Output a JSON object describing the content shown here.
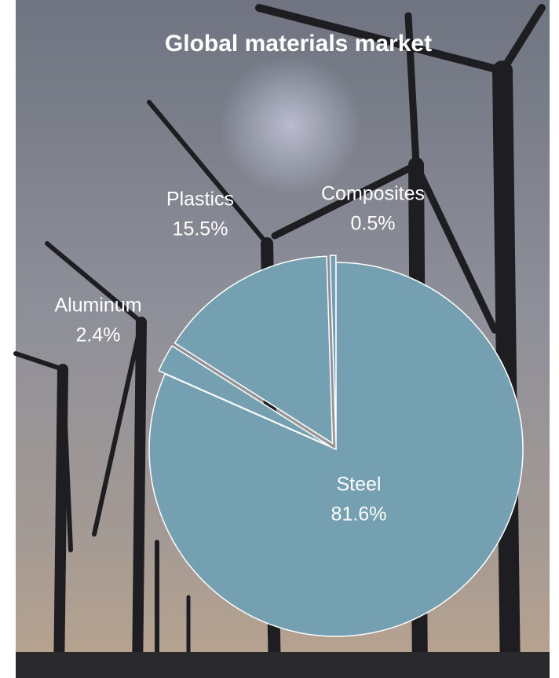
{
  "chart_data": {
    "type": "pie",
    "title": "Global materials market",
    "categories": [
      "Steel",
      "Aluminum",
      "Plastics",
      "Composites"
    ],
    "values": [
      81.6,
      2.4,
      15.5,
      0.5
    ],
    "value_labels": [
      "81.6%",
      "2.4%",
      "15.5%",
      "0.5%"
    ],
    "color": "#74a0b2"
  }
}
